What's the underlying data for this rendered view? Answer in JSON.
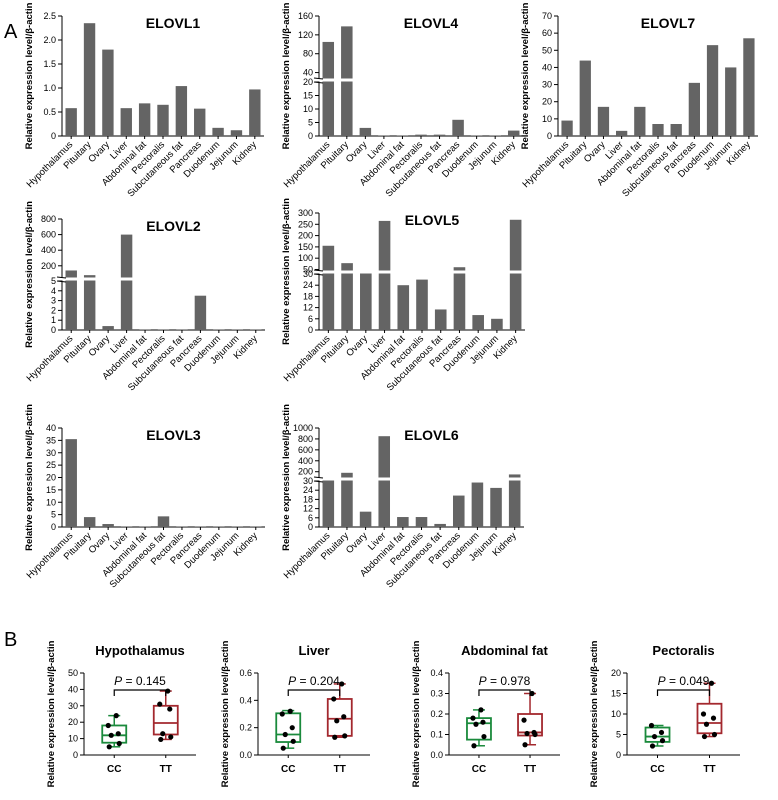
{
  "panel_labels": [
    "A",
    "B"
  ],
  "chart_data": [
    {
      "type": "bar",
      "title": "ELOVL1",
      "ylabel": "Relative expression level/β-actin",
      "categories": [
        "Hypothalamus",
        "Pituitary",
        "Ovary",
        "Liver",
        "Abdominal fat",
        "Pectoralis",
        "Subcutaneous fat",
        "Pancreas",
        "Duodenum",
        "Jejunum",
        "Kidney"
      ],
      "values": [
        0.58,
        2.35,
        1.8,
        0.58,
        0.68,
        0.65,
        1.04,
        0.57,
        0.17,
        0.12,
        0.97
      ],
      "ylim": [
        0,
        2.5
      ],
      "yticks": [
        0,
        0.5,
        1.0,
        1.5,
        2.0,
        2.5
      ],
      "ytick_labels": [
        "0",
        "0.5",
        "1.0",
        "1.5",
        "2.0",
        "2.5"
      ]
    },
    {
      "type": "bar",
      "title": "ELOVL4",
      "ylabel": "Relative expression level/β-actin",
      "categories": [
        "Hypothalamus",
        "Pituitary",
        "Ovary",
        "Liver",
        "Abdominal fat",
        "Pectoralis",
        "Subcutaneous fat",
        "Pancreas",
        "Duodenum",
        "Jejunum",
        "Kidney"
      ],
      "values": [
        105,
        138,
        3,
        0.2,
        0.2,
        0.5,
        0.5,
        6,
        0.1,
        0.1,
        2
      ],
      "y_axis_break": {
        "lower": [
          0,
          20
        ],
        "upper": [
          20,
          160
        ]
      },
      "yticks": [
        0,
        5,
        10,
        15,
        20,
        40,
        80,
        120,
        160
      ],
      "ytick_labels": [
        "0",
        "5",
        "10",
        "15",
        "20",
        "40",
        "80",
        "120",
        "160"
      ]
    },
    {
      "type": "bar",
      "title": "ELOVL7",
      "ylabel": "Relative expression level/β-actin",
      "categories": [
        "Hypothalamus",
        "Pituitary",
        "Ovary",
        "Liver",
        "Abdominal fat",
        "Pectoralis",
        "Subcutaneous fat",
        "Pancreas",
        "Duodenum",
        "Jejunum",
        "Kidney"
      ],
      "values": [
        9,
        44,
        17,
        3,
        17,
        7,
        7,
        31,
        53,
        40,
        57
      ],
      "ylim": [
        0,
        70
      ],
      "yticks": [
        0,
        10,
        20,
        30,
        40,
        50,
        60,
        70
      ],
      "ytick_labels": [
        "0",
        "10",
        "20",
        "30",
        "40",
        "50",
        "60",
        "70"
      ]
    },
    {
      "type": "bar",
      "title": "ELOVL2",
      "ylabel": "Relative expression level/β-actin",
      "categories": [
        "Hypothalamus",
        "Pituitary",
        "Ovary",
        "Liver",
        "Abdominal fat",
        "Pectoralis",
        "Subcutaneous fat",
        "Pancreas",
        "Duodenum",
        "Jejunum",
        "Kidney"
      ],
      "values": [
        140,
        80,
        0.4,
        600,
        0.02,
        0.02,
        0.02,
        3.5,
        0.02,
        0.02,
        0.02
      ],
      "y_axis_break": {
        "lower": [
          0,
          5
        ],
        "upper": [
          5,
          800
        ]
      },
      "yticks": [
        0,
        1,
        2,
        3,
        4,
        5,
        200,
        400,
        600,
        800
      ],
      "ytick_labels": [
        "0",
        "1",
        "2",
        "3",
        "4",
        "5",
        "200",
        "400",
        "600",
        "800"
      ]
    },
    {
      "type": "bar",
      "title": "ELOVL5",
      "ylabel": "Relative expression level/β-actin",
      "categories": [
        "Hypothalamus",
        "Pituitary",
        "Ovary",
        "Liver",
        "Abdominal fat",
        "Pectoralis",
        "Subcutaneous fat",
        "Pancreas",
        "Duodenum",
        "Jejunum",
        "Kidney"
      ],
      "values": [
        155,
        78,
        45,
        265,
        24,
        27,
        11,
        60,
        8,
        6,
        270
      ],
      "y_axis_break": {
        "lower": [
          0,
          30
        ],
        "upper": [
          30,
          300
        ]
      },
      "yticks": [
        0,
        6,
        12,
        18,
        24,
        30,
        50,
        100,
        150,
        200,
        250,
        300
      ],
      "ytick_labels": [
        "0",
        "6",
        "12",
        "18",
        "24",
        "30",
        "50",
        "100",
        "150",
        "200",
        "250",
        "300"
      ]
    },
    {
      "type": "bar",
      "title": "ELOVL3",
      "ylabel": "Relative expression level/β-actin",
      "categories": [
        "Hypothalamus",
        "Pituitary",
        "Ovary",
        "Liver",
        "Abdominal fat",
        "Subcutaneous fat",
        "Pectoralis",
        "Pancreas",
        "Duodenum",
        "Jejunum",
        "Kidney"
      ],
      "values": [
        35.5,
        4,
        1.2,
        0.05,
        0.05,
        4.3,
        0.05,
        0.05,
        0.05,
        0.05,
        0.05
      ],
      "ylim": [
        0,
        40
      ],
      "yticks": [
        0,
        5,
        10,
        15,
        20,
        25,
        30,
        35,
        40
      ],
      "ytick_labels": [
        "0",
        "5",
        "10",
        "15",
        "20",
        "25",
        "30",
        "35",
        "40"
      ]
    },
    {
      "type": "bar",
      "title": "ELOVL6",
      "ylabel": "Relative expression level/β-actin",
      "categories": [
        "Hypothalamus",
        "Pituitary",
        "Ovary",
        "Liver",
        "Abdominal fat",
        "Pectoralis",
        "Subcutaneous fat",
        "Pancreas",
        "Duodenum",
        "Jejunum",
        "Kidney"
      ],
      "values": [
        70,
        180,
        10,
        850,
        6.5,
        6.5,
        2,
        20.5,
        29,
        25.5,
        150
      ],
      "y_axis_break": {
        "lower": [
          0,
          30
        ],
        "upper": [
          30,
          1000
        ]
      },
      "yticks": [
        0,
        6,
        12,
        18,
        24,
        30,
        200,
        400,
        600,
        800,
        1000
      ],
      "ytick_labels": [
        "0",
        "6",
        "12",
        "18",
        "24",
        "30",
        "200",
        "400",
        "600",
        "800",
        "1000"
      ]
    },
    {
      "type": "box",
      "title": "Hypothalamus",
      "ylabel": "Relative expression level/β-actin",
      "categories": [
        "CC",
        "TT"
      ],
      "p_text": "P",
      "p_value": " = 0.145",
      "ylim": [
        0,
        50
      ],
      "yticks": [
        0,
        10,
        20,
        30,
        40,
        50
      ],
      "ytick_labels": [
        "0",
        "10",
        "20",
        "30",
        "40",
        "50"
      ],
      "groups": [
        {
          "name": "CC",
          "color": "#1a8a3c",
          "min": 5,
          "q1": 7.5,
          "median": 12,
          "q3": 18,
          "max": 24,
          "points": [
            5,
            7,
            12,
            13,
            18,
            24
          ]
        },
        {
          "name": "TT",
          "color": "#a3282e",
          "min": 9.5,
          "q1": 12.5,
          "median": 19.5,
          "q3": 30,
          "max": 39,
          "points": [
            9.5,
            11,
            13,
            28,
            31,
            39
          ]
        }
      ]
    },
    {
      "type": "box",
      "title": "Liver",
      "ylabel": "Relative expression level/β-actin",
      "categories": [
        "CC",
        "TT"
      ],
      "p_text": "P",
      "p_value": " = 0.204",
      "ylim": [
        0,
        0.6
      ],
      "yticks": [
        0,
        0.2,
        0.4,
        0.6
      ],
      "ytick_labels": [
        "0.0",
        "0.2",
        "0.4",
        "0.6"
      ],
      "groups": [
        {
          "name": "CC",
          "color": "#1a8a3c",
          "min": 0.05,
          "q1": 0.095,
          "median": 0.15,
          "q3": 0.305,
          "max": 0.325,
          "points": [
            0.05,
            0.1,
            0.15,
            0.2,
            0.3,
            0.32
          ]
        },
        {
          "name": "TT",
          "color": "#a3282e",
          "min": 0.13,
          "q1": 0.14,
          "median": 0.265,
          "q3": 0.41,
          "max": 0.52,
          "points": [
            0.13,
            0.14,
            0.25,
            0.28,
            0.41,
            0.52
          ]
        }
      ]
    },
    {
      "type": "box",
      "title": "Abdominal fat",
      "ylabel": "Relative expression level/β-actin",
      "categories": [
        "CC",
        "TT"
      ],
      "p_text": "P",
      "p_value": " = 0.978",
      "ylim": [
        0,
        0.4
      ],
      "yticks": [
        0,
        0.1,
        0.2,
        0.3,
        0.4
      ],
      "ytick_labels": [
        "0.0",
        "0.1",
        "0.2",
        "0.3",
        "0.4"
      ],
      "groups": [
        {
          "name": "CC",
          "color": "#1a8a3c",
          "min": 0.045,
          "q1": 0.075,
          "median": 0.155,
          "q3": 0.18,
          "max": 0.22,
          "points": [
            0.045,
            0.09,
            0.15,
            0.16,
            0.18,
            0.22
          ]
        },
        {
          "name": "TT",
          "color": "#a3282e",
          "min": 0.05,
          "q1": 0.095,
          "median": 0.11,
          "q3": 0.2,
          "max": 0.3,
          "points": [
            0.05,
            0.1,
            0.105,
            0.11,
            0.17,
            0.3
          ]
        }
      ]
    },
    {
      "type": "box",
      "title": "Pectoralis",
      "ylabel": "Relative expression level/β-actin",
      "categories": [
        "CC",
        "TT"
      ],
      "p_text": "P",
      "p_value": " = 0.049",
      "ylim": [
        0,
        20
      ],
      "yticks": [
        0,
        5,
        10,
        15,
        20
      ],
      "ytick_labels": [
        "0",
        "5",
        "10",
        "15",
        "20"
      ],
      "groups": [
        {
          "name": "CC",
          "color": "#1a8a3c",
          "min": 2.2,
          "q1": 3.2,
          "median": 4.5,
          "q3": 6.7,
          "max": 7.2,
          "points": [
            2.2,
            3.5,
            4.5,
            5.5,
            7.2
          ]
        },
        {
          "name": "TT",
          "color": "#a3282e",
          "min": 4.5,
          "q1": 5.3,
          "median": 7.8,
          "q3": 12.5,
          "max": 17.5,
          "points": [
            4.5,
            5.0,
            7.5,
            9.0,
            10.0,
            17.5
          ]
        }
      ]
    }
  ]
}
